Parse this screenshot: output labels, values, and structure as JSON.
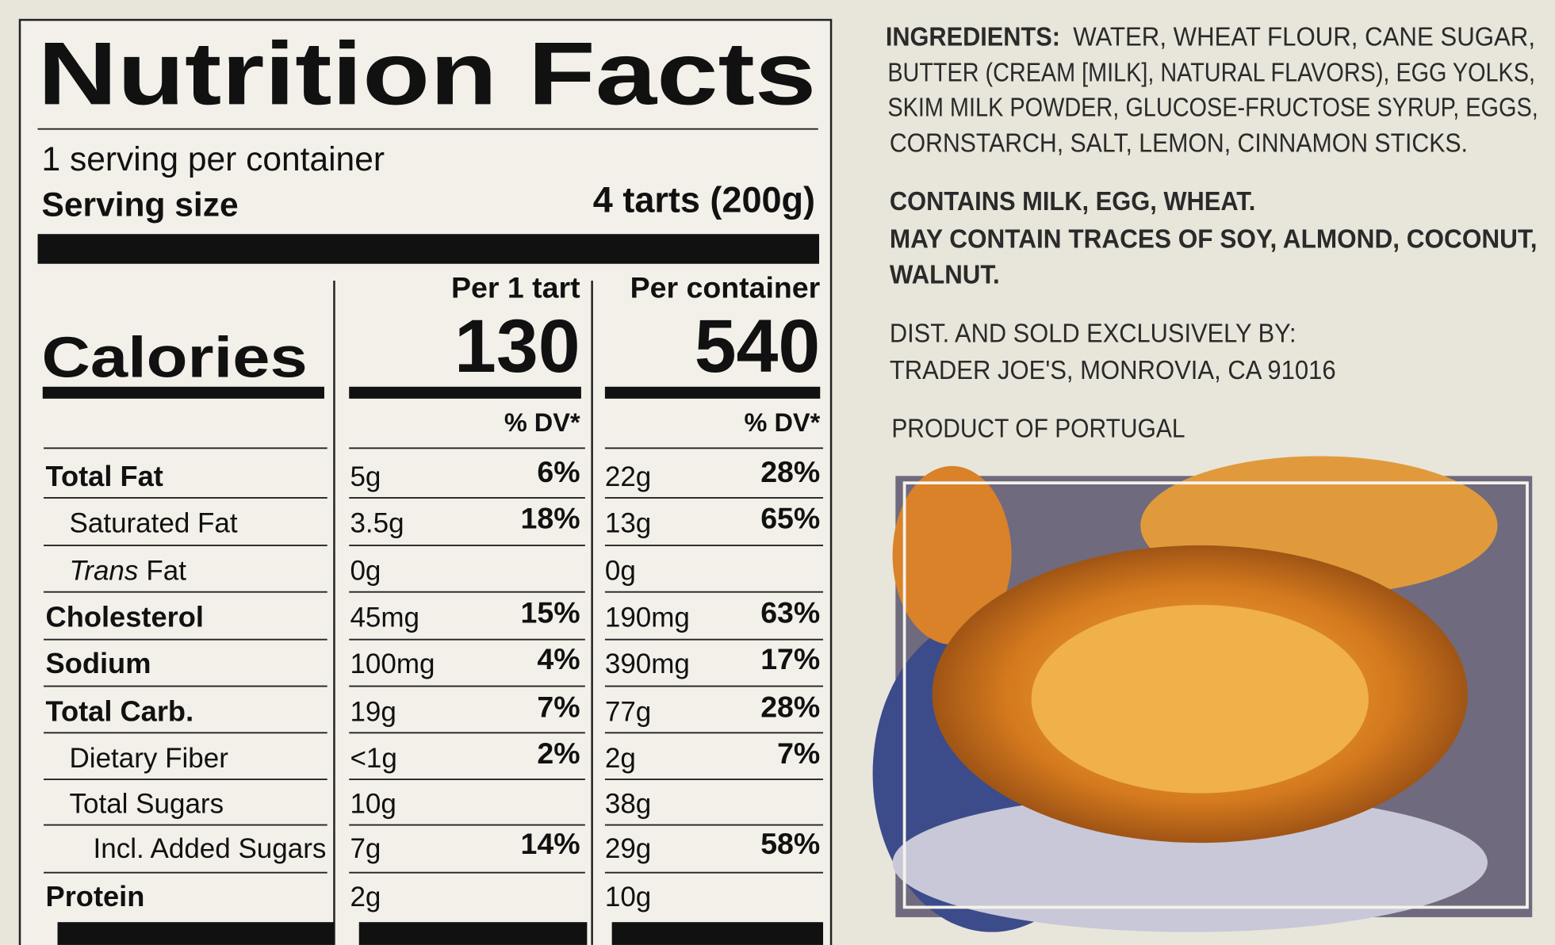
{
  "label": {
    "title": "Nutrition Facts",
    "servings": "1 serving per container",
    "serving_size_label": "Serving size",
    "serving_size_value": "4 tarts (200g)",
    "calories_label": "Calories",
    "columns": [
      {
        "header": "Per 1 tart",
        "calories": 130,
        "dv_header": "% DV*"
      },
      {
        "header": "Per container",
        "calories": 540,
        "dv_header": "% DV*"
      }
    ],
    "rows": [
      {
        "name": "Total Fat",
        "values": [
          [
            "5g",
            "6%"
          ],
          [
            "22g",
            "28%"
          ]
        ]
      },
      {
        "name": "Saturated Fat",
        "values": [
          [
            "3.5g",
            "18%"
          ],
          [
            "13g",
            "65%"
          ]
        ]
      },
      {
        "name_parts": [
          "Trans",
          "Fat"
        ],
        "values": [
          [
            "0g"
          ],
          [
            "0g"
          ]
        ]
      },
      {
        "name": "Cholesterol",
        "values": [
          [
            "45mg",
            "15%"
          ],
          [
            "190mg",
            "63%"
          ]
        ]
      },
      {
        "name": "Sodium",
        "values": [
          [
            "100mg",
            "4%"
          ],
          [
            "390mg",
            "17%"
          ]
        ]
      },
      {
        "name": "Total Carb.",
        "values": [
          [
            "19g",
            "7%"
          ],
          [
            "77g",
            "28%"
          ]
        ]
      },
      {
        "name": "Dietary Fiber",
        "values": [
          [
            "<1g",
            "2%"
          ],
          [
            "2g",
            "7%"
          ]
        ]
      },
      {
        "name": "Total Sugars",
        "values": [
          [
            "10g"
          ],
          [
            "38g"
          ]
        ]
      },
      {
        "name": "Incl. Added Sugars",
        "values": [
          [
            "7g",
            "14%"
          ],
          [
            "29g",
            "58%"
          ]
        ]
      },
      {
        "name": "Protein",
        "values": [
          [
            "2g"
          ],
          [
            "10g"
          ]
        ]
      }
    ]
  },
  "ingredients": {
    "label": "INGREDIENTS:",
    "lines": [
      "WATER, WHEAT FLOUR, CANE SUGAR,",
      "BUTTER (CREAM [MILK], NATURAL FLAVORS), EGG YOLKS,",
      "SKIM MILK POWDER, GLUCOSE-FRUCTOSE SYRUP, EGGS,",
      "CORNSTARCH, SALT, LEMON, CINNAMON STICKS."
    ]
  },
  "allergens": [
    "CONTAINS MILK, EGG, WHEAT.",
    "MAY CONTAIN TRACES OF SOY, ALMOND, COCONUT,",
    "WALNUT."
  ],
  "distributor": [
    "DIST. AND SOLD EXCLUSIVELY BY:",
    "TRADER JOE'S, MONROVIA, CA 91016"
  ],
  "origin": "PRODUCT OF PORTUGAL"
}
